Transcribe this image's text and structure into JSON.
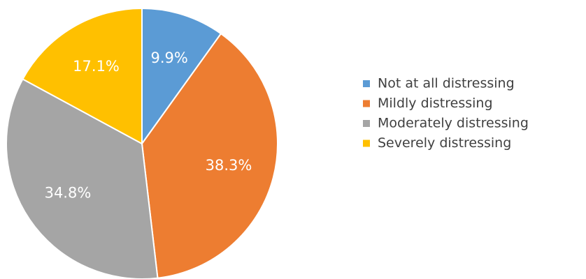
{
  "chart_data": {
    "type": "pie",
    "categories": [
      "Not at all distressing",
      "Mildly distressing",
      "Moderately distressing",
      "Severely distressing"
    ],
    "values": [
      9.9,
      38.3,
      34.8,
      17.1
    ],
    "value_labels": [
      "9.9%",
      "38.3%",
      "34.8%",
      "17.1%"
    ],
    "colors": [
      "#5b9bd5",
      "#ed7d31",
      "#a5a5a5",
      "#ffc000"
    ],
    "legend": "right"
  }
}
